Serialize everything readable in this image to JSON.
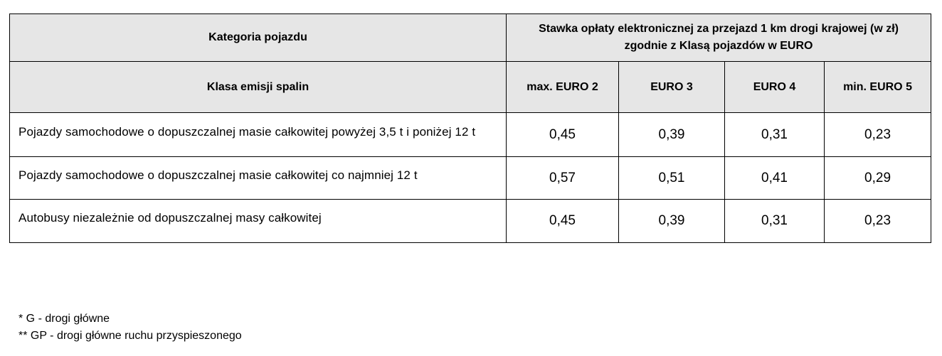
{
  "table": {
    "header": {
      "category": "Kategoria pojazdu",
      "rate_title_line1": "Stawka opłaty elektronicznej za przejazd 1 km drogi krajowej (w zł)",
      "rate_title_line2": "zgodnie z Klasą pojazdów w EURO",
      "emission_class": "Klasa emisji spalin",
      "columns": [
        "max. EURO 2",
        "EURO 3",
        "EURO 4",
        "min. EURO 5"
      ]
    },
    "rows": [
      {
        "category": "Pojazdy samochodowe o dopuszczalnej masie całkowitej powyżej 3,5 t i poniżej 12 t",
        "values": [
          "0,45",
          "0,39",
          "0,31",
          "0,23"
        ]
      },
      {
        "category": "Pojazdy samochodowe o dopuszczalnej masie całkowitej co najmniej 12 t",
        "values": [
          "0,57",
          "0,51",
          "0,41",
          "0,29"
        ]
      },
      {
        "category": "Autobusy niezależnie od dopuszczalnej masy całkowitej",
        "values": [
          "0,45",
          "0,39",
          "0,31",
          "0,23"
        ]
      }
    ]
  },
  "footnotes": [
    "* G - drogi główne",
    "** GP - drogi główne ruchu przyspieszonego"
  ],
  "colors": {
    "header_background": "#e6e6e6",
    "border": "#000000"
  }
}
